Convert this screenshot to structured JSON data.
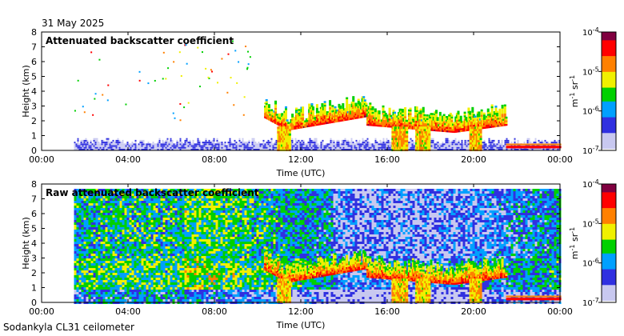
{
  "date": "31 May 2025",
  "footer": "Sodankyla CL31 ceilometer",
  "chart_data": [
    {
      "type": "heatmap",
      "title": "Attenuated backscatter coefficient",
      "xlabel": "Time (UTC)",
      "ylabel": "Height (km)",
      "x_ticks": [
        "00:00",
        "04:00",
        "08:00",
        "12:00",
        "16:00",
        "20:00",
        "00:00"
      ],
      "y_ticks": [
        "0",
        "1",
        "2",
        "3",
        "4",
        "5",
        "6",
        "7",
        "8"
      ],
      "xlim_hours": [
        0,
        24
      ],
      "ylim_km": [
        0,
        8
      ],
      "data_start_hour": 1.5,
      "colorbar": {
        "ticks": [
          "10^-7",
          "10^-6",
          "10^-5",
          "10^-4"
        ],
        "unit_label": "m^-1 sr^-1",
        "scale": "log",
        "range": [
          1e-07,
          0.0001
        ]
      },
      "features": [
        {
          "name": "low noise layer",
          "from_hour": 1.5,
          "to_hour": 24,
          "top_km": 0.6,
          "level": "~2e-7"
        },
        {
          "name": "cloud layer",
          "from_hour": 10.5,
          "to_hour": 21.5,
          "base_km": [
            1.2,
            2.2
          ],
          "level": "~1e-5"
        },
        {
          "name": "precipitation shafts",
          "hours": [
            11.0,
            16.5,
            17.5,
            20.0
          ],
          "level": "~5e-6"
        },
        {
          "name": "low cloud",
          "from_hour": 21.5,
          "to_hour": 24,
          "base_km": 0.2,
          "level": "~1e-4"
        }
      ]
    },
    {
      "type": "heatmap",
      "title": "Raw attenuated backscatter coefficient",
      "xlabel": "Time (UTC)",
      "ylabel": "Height (km)",
      "x_ticks": [
        "00:00",
        "04:00",
        "08:00",
        "12:00",
        "16:00",
        "20:00",
        "00:00"
      ],
      "y_ticks": [
        "0",
        "1",
        "2",
        "3",
        "4",
        "5",
        "6",
        "7",
        "8"
      ],
      "xlim_hours": [
        0,
        24
      ],
      "ylim_km": [
        0,
        8
      ],
      "data_start_hour": 1.5,
      "colorbar": {
        "ticks": [
          "10^-7",
          "10^-6",
          "10^-5",
          "10^-4"
        ],
        "unit_label": "m^-1 sr^-1",
        "scale": "log",
        "range": [
          1e-07,
          0.0001
        ]
      },
      "features": [
        {
          "name": "background noise",
          "from_hour": 1.5,
          "to_hour": 24,
          "level": "~5e-7 to 2e-6"
        },
        {
          "name": "cloud layer",
          "from_hour": 10.5,
          "to_hour": 21.5,
          "base_km": [
            1.2,
            2.2
          ],
          "level": "~1e-5"
        },
        {
          "name": "low cloud",
          "from_hour": 21.5,
          "to_hour": 24,
          "base_km": 0.2,
          "level": "~1e-4"
        }
      ]
    }
  ],
  "colors": {
    "cmap": [
      "#ffffff",
      "#c8c8f0",
      "#3030e0",
      "#00a0ff",
      "#00d000",
      "#f0f000",
      "#ff8000",
      "#ff0000",
      "#800040"
    ]
  }
}
